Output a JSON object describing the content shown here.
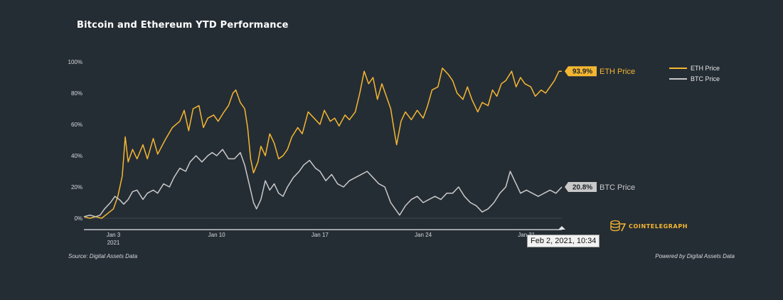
{
  "title": "Bitcoin and Ethereum YTD Performance",
  "source": "Source: Digital Assets Data",
  "powered_by": "Powered by Digital Assets Data",
  "brand": "COINTELEGRAPH",
  "tooltip": "Feb 2, 2021, 10:34",
  "colors": {
    "eth": "#f5b731",
    "btc": "#c9c9c9",
    "background": "#252d34"
  },
  "chart_data": {
    "type": "line",
    "title": "Bitcoin and Ethereum YTD Performance",
    "x_ticks": [
      {
        "label": "Jan 3",
        "sublabel": "2021",
        "day": 3
      },
      {
        "label": "Jan 10",
        "day": 10
      },
      {
        "label": "Jan 17",
        "day": 17
      },
      {
        "label": "Jan 24",
        "day": 24
      },
      {
        "label": "Jan 31",
        "day": 31
      }
    ],
    "y_ticks": [
      "0%",
      "20%",
      "40%",
      "60%",
      "80%",
      "100%"
    ],
    "ylim": [
      0,
      100
    ],
    "xlim": [
      1,
      33.4
    ],
    "legend_position": "top-right",
    "series": [
      {
        "name": "ETH Price",
        "end_label": "93.9%",
        "points": [
          [
            1.0,
            1
          ],
          [
            1.4,
            0
          ],
          [
            1.8,
            1
          ],
          [
            2.2,
            0
          ],
          [
            2.6,
            3
          ],
          [
            3.0,
            6
          ],
          [
            3.3,
            14
          ],
          [
            3.6,
            27
          ],
          [
            3.8,
            52
          ],
          [
            4.0,
            36
          ],
          [
            4.3,
            44
          ],
          [
            4.6,
            38
          ],
          [
            5.0,
            47
          ],
          [
            5.3,
            38
          ],
          [
            5.7,
            51
          ],
          [
            6.0,
            41
          ],
          [
            6.5,
            50
          ],
          [
            7.0,
            58
          ],
          [
            7.5,
            62
          ],
          [
            7.8,
            69
          ],
          [
            8.1,
            56
          ],
          [
            8.4,
            70
          ],
          [
            8.8,
            72
          ],
          [
            9.1,
            58
          ],
          [
            9.4,
            64
          ],
          [
            9.8,
            66
          ],
          [
            10.1,
            62
          ],
          [
            10.5,
            68
          ],
          [
            10.8,
            72
          ],
          [
            11.1,
            80
          ],
          [
            11.3,
            82
          ],
          [
            11.6,
            74
          ],
          [
            11.9,
            70
          ],
          [
            12.1,
            58
          ],
          [
            12.3,
            38
          ],
          [
            12.5,
            29
          ],
          [
            12.8,
            36
          ],
          [
            13.0,
            46
          ],
          [
            13.3,
            40
          ],
          [
            13.6,
            54
          ],
          [
            13.9,
            48
          ],
          [
            14.2,
            38
          ],
          [
            14.5,
            40
          ],
          [
            14.8,
            44
          ],
          [
            15.1,
            52
          ],
          [
            15.5,
            58
          ],
          [
            15.8,
            54
          ],
          [
            16.2,
            68
          ],
          [
            16.6,
            64
          ],
          [
            17.0,
            60
          ],
          [
            17.3,
            69
          ],
          [
            17.7,
            62
          ],
          [
            18.0,
            64
          ],
          [
            18.3,
            59
          ],
          [
            18.7,
            66
          ],
          [
            19.0,
            63
          ],
          [
            19.4,
            68
          ],
          [
            19.7,
            80
          ],
          [
            20.0,
            94
          ],
          [
            20.3,
            86
          ],
          [
            20.6,
            90
          ],
          [
            20.9,
            76
          ],
          [
            21.2,
            86
          ],
          [
            21.5,
            78
          ],
          [
            21.8,
            70
          ],
          [
            22.0,
            58
          ],
          [
            22.2,
            47
          ],
          [
            22.5,
            62
          ],
          [
            22.8,
            68
          ],
          [
            23.2,
            63
          ],
          [
            23.6,
            69
          ],
          [
            24.0,
            64
          ],
          [
            24.3,
            72
          ],
          [
            24.6,
            82
          ],
          [
            25.0,
            84
          ],
          [
            25.3,
            96
          ],
          [
            25.7,
            92
          ],
          [
            26.0,
            88
          ],
          [
            26.3,
            80
          ],
          [
            26.7,
            76
          ],
          [
            27.0,
            84
          ],
          [
            27.3,
            76
          ],
          [
            27.7,
            68
          ],
          [
            28.0,
            74
          ],
          [
            28.4,
            72
          ],
          [
            28.7,
            82
          ],
          [
            29.0,
            78
          ],
          [
            29.3,
            86
          ],
          [
            29.6,
            88
          ],
          [
            30.0,
            94
          ],
          [
            30.3,
            84
          ],
          [
            30.6,
            90
          ],
          [
            30.9,
            86
          ],
          [
            31.3,
            84
          ],
          [
            31.6,
            78
          ],
          [
            32.0,
            82
          ],
          [
            32.3,
            80
          ],
          [
            32.6,
            84
          ],
          [
            32.9,
            88
          ],
          [
            33.2,
            94
          ],
          [
            33.4,
            94
          ]
        ]
      },
      {
        "name": "BTC Price",
        "end_label": "20.8%",
        "points": [
          [
            1.0,
            1
          ],
          [
            1.4,
            2
          ],
          [
            1.8,
            1
          ],
          [
            2.1,
            2
          ],
          [
            2.4,
            6
          ],
          [
            2.8,
            10
          ],
          [
            3.1,
            14
          ],
          [
            3.4,
            12
          ],
          [
            3.7,
            9
          ],
          [
            4.0,
            12
          ],
          [
            4.3,
            17
          ],
          [
            4.6,
            18
          ],
          [
            5.0,
            12
          ],
          [
            5.3,
            16
          ],
          [
            5.7,
            18
          ],
          [
            6.0,
            16
          ],
          [
            6.4,
            22
          ],
          [
            6.8,
            20
          ],
          [
            7.1,
            26
          ],
          [
            7.5,
            32
          ],
          [
            7.9,
            30
          ],
          [
            8.2,
            36
          ],
          [
            8.6,
            40
          ],
          [
            9.0,
            36
          ],
          [
            9.4,
            40
          ],
          [
            9.7,
            42
          ],
          [
            10.0,
            40
          ],
          [
            10.4,
            44
          ],
          [
            10.8,
            38
          ],
          [
            11.2,
            38
          ],
          [
            11.6,
            42
          ],
          [
            11.9,
            34
          ],
          [
            12.2,
            22
          ],
          [
            12.5,
            10
          ],
          [
            12.7,
            6
          ],
          [
            13.0,
            12
          ],
          [
            13.3,
            24
          ],
          [
            13.6,
            18
          ],
          [
            13.9,
            22
          ],
          [
            14.2,
            16
          ],
          [
            14.5,
            14
          ],
          [
            14.8,
            20
          ],
          [
            15.2,
            26
          ],
          [
            15.6,
            30
          ],
          [
            15.9,
            34
          ],
          [
            16.3,
            37
          ],
          [
            16.7,
            32
          ],
          [
            17.0,
            30
          ],
          [
            17.4,
            24
          ],
          [
            17.8,
            28
          ],
          [
            18.2,
            22
          ],
          [
            18.6,
            20
          ],
          [
            19.0,
            24
          ],
          [
            19.4,
            26
          ],
          [
            19.8,
            28
          ],
          [
            20.2,
            30
          ],
          [
            20.6,
            26
          ],
          [
            21.0,
            22
          ],
          [
            21.4,
            20
          ],
          [
            21.8,
            10
          ],
          [
            22.1,
            6
          ],
          [
            22.4,
            2
          ],
          [
            22.8,
            8
          ],
          [
            23.2,
            12
          ],
          [
            23.6,
            14
          ],
          [
            24.0,
            10
          ],
          [
            24.4,
            12
          ],
          [
            24.8,
            14
          ],
          [
            25.2,
            12
          ],
          [
            25.6,
            16
          ],
          [
            26.0,
            16
          ],
          [
            26.4,
            20
          ],
          [
            26.8,
            14
          ],
          [
            27.2,
            10
          ],
          [
            27.6,
            8
          ],
          [
            28.0,
            4
          ],
          [
            28.4,
            6
          ],
          [
            28.8,
            10
          ],
          [
            29.2,
            16
          ],
          [
            29.6,
            20
          ],
          [
            29.9,
            30
          ],
          [
            30.2,
            24
          ],
          [
            30.6,
            16
          ],
          [
            31.0,
            18
          ],
          [
            31.4,
            16
          ],
          [
            31.8,
            14
          ],
          [
            32.2,
            16
          ],
          [
            32.6,
            18
          ],
          [
            33.0,
            16
          ],
          [
            33.4,
            20
          ]
        ]
      }
    ]
  }
}
